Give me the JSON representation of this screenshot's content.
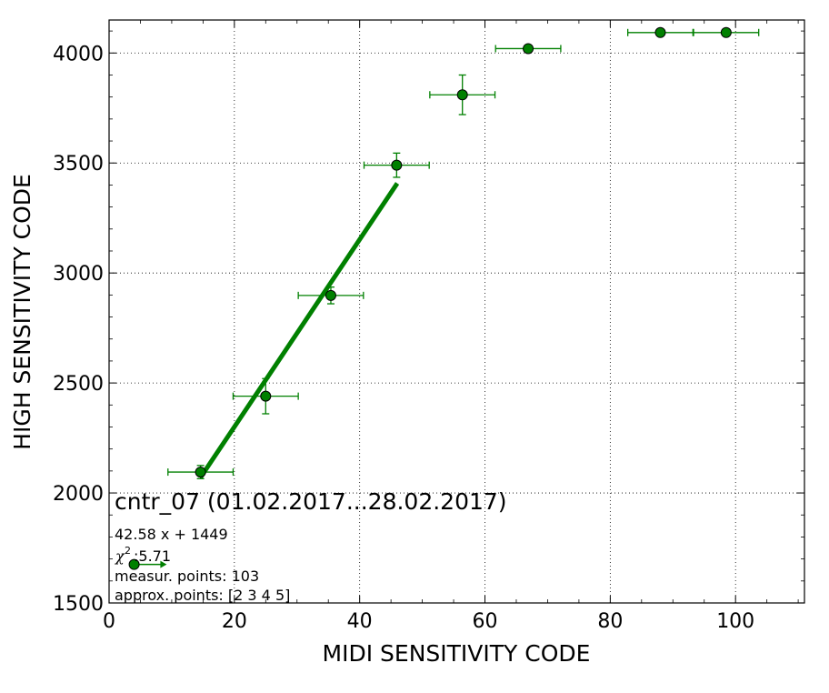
{
  "chart_data": {
    "type": "scatter",
    "xlabel": "MIDI SENSITIVITY CODE",
    "ylabel": "HIGH SENSITIVITY CODE",
    "xlim": [
      0,
      111
    ],
    "ylim": [
      1500,
      4150
    ],
    "xticks": [
      0,
      20,
      40,
      60,
      80,
      100
    ],
    "yticks": [
      1500,
      2000,
      2500,
      3000,
      3500,
      4000
    ],
    "x_tick_labels": [
      "0",
      "20",
      "40",
      "60",
      "80",
      "100"
    ],
    "y_tick_labels": [
      "1500",
      "2000",
      "2500",
      "3000",
      "3500",
      "4000"
    ],
    "grid": true,
    "marker_color": "#008000",
    "line_color": "#008000",
    "points": [
      {
        "x": 14.6,
        "y": 2095,
        "xerr": 5.2,
        "yerr": 30
      },
      {
        "x": 25.0,
        "y": 2440,
        "xerr": 5.2,
        "yerr": 80
      },
      {
        "x": 35.4,
        "y": 2898,
        "xerr": 5.2,
        "yerr": 38
      },
      {
        "x": 45.9,
        "y": 3490,
        "xerr": 5.2,
        "yerr": 55
      },
      {
        "x": 56.4,
        "y": 3810,
        "xerr": 5.2,
        "yerr": 90
      },
      {
        "x": 66.9,
        "y": 4020,
        "xerr": 5.2,
        "yerr": 0
      },
      {
        "x": 88.0,
        "y": 4093,
        "xerr": 5.2,
        "yerr": 0
      },
      {
        "x": 98.5,
        "y": 4093,
        "xerr": 5.2,
        "yerr": 0
      }
    ],
    "fit": {
      "slope": 42.58,
      "intercept": 1449,
      "x_range": [
        14.6,
        46.0
      ]
    },
    "legend_marker": {
      "x": 4.0,
      "y": 1675,
      "xerr": 5.2
    },
    "annotation": {
      "title": "cntr_07 (01.02.2017...28.02.2017)",
      "fit_text": "42.58 x + 1449",
      "chi_symbol": "χ",
      "chi_exp": "2",
      "chi_value": ":5.71",
      "measur_points": "measur. points: 103",
      "approx_points": "approx. points: [2 3 4 5]"
    }
  }
}
